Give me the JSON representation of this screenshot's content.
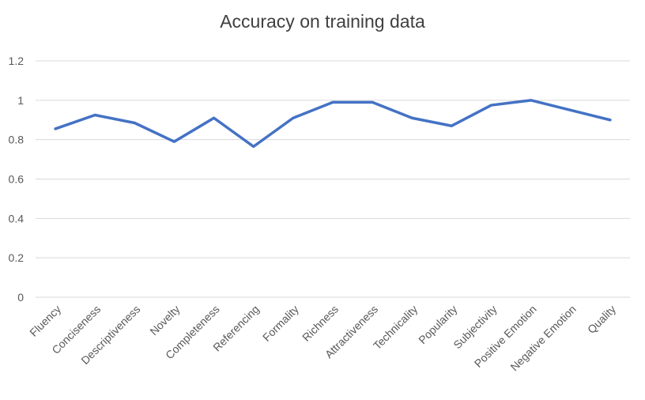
{
  "chart_data": {
    "type": "line",
    "title": "Accuracy on training data",
    "xlabel": "",
    "ylabel": "",
    "categories": [
      "Fluency",
      "Conciseness",
      "Descriptiveness",
      "Novelty",
      "Completeness",
      "Referencing",
      "Formality",
      "Richness",
      "Attractiveness",
      "Technicality",
      "Popularity",
      "Subjectivity",
      "Positive Emotion",
      "Negative Emotion",
      "Quality"
    ],
    "series": [
      {
        "values": [
          0.855,
          0.925,
          0.885,
          0.79,
          0.91,
          0.765,
          0.91,
          0.99,
          0.99,
          0.91,
          0.87,
          0.975,
          1.0,
          0.95,
          0.9
        ]
      }
    ],
    "ylim": [
      0,
      1.2
    ],
    "yticks": [
      0,
      0.2,
      0.4,
      0.6,
      0.8,
      1,
      1.2
    ],
    "ytick_labels": [
      "0",
      "0.2",
      "0.4",
      "0.6",
      "0.8",
      "1",
      "1.2"
    ],
    "grid": true,
    "legend": "none",
    "colors": {
      "series": "#4472c4",
      "grid": "#d9d9d9",
      "text": "#595959"
    }
  }
}
